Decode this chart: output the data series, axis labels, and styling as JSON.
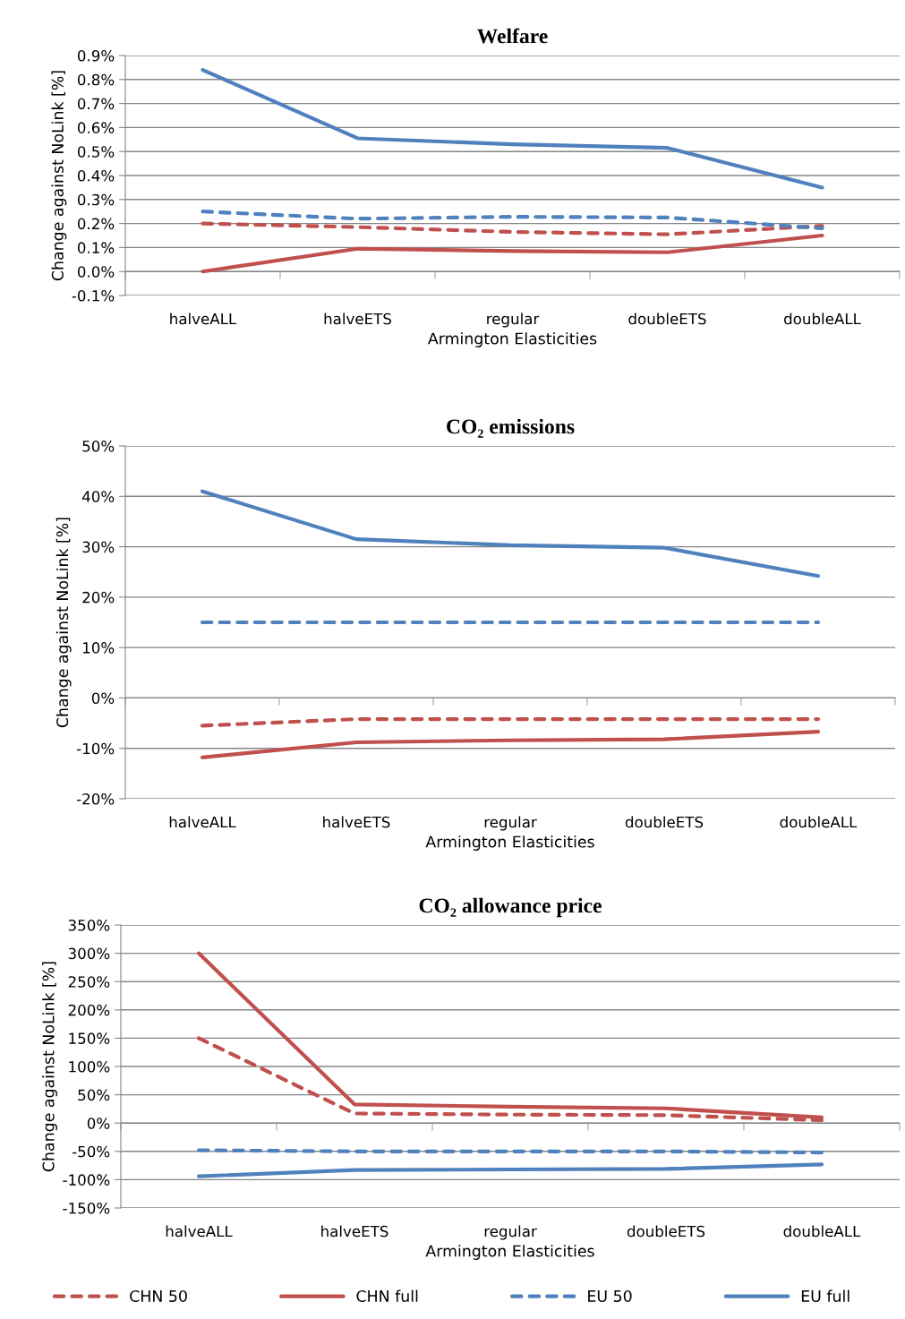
{
  "chart_data": [
    {
      "type": "line",
      "title": "Welfare",
      "xlabel": "Armington Elasticities",
      "ylabel": "Change against NoLink [%]",
      "categories": [
        "halveALL",
        "halveETS",
        "regular",
        "doubleETS",
        "doubleALL"
      ],
      "series": [
        {
          "color": "#c0504d",
          "line_style": "dashed",
          "values": [
            0.2,
            0.185,
            0.165,
            0.155,
            0.19
          ]
        },
        {
          "color": "#c0504d",
          "line_style": "solid",
          "values": [
            0.0,
            0.095,
            0.085,
            0.08,
            0.15
          ]
        },
        {
          "color": "#4f81bd",
          "line_style": "dashed",
          "values": [
            0.25,
            0.22,
            0.228,
            0.225,
            0.18
          ]
        },
        {
          "color": "#4f81bd",
          "line_style": "solid",
          "values": [
            0.84,
            0.555,
            0.53,
            0.515,
            0.35
          ]
        }
      ],
      "ylim": [
        -0.1,
        0.9
      ],
      "yticks": [
        {
          "value": -0.1,
          "label": "-0.1%"
        },
        {
          "value": 0.0,
          "label": "0.0%"
        },
        {
          "value": 0.1,
          "label": "0.1%"
        },
        {
          "value": 0.2,
          "label": "0.2%"
        },
        {
          "value": 0.3,
          "label": "0.3%"
        },
        {
          "value": 0.4,
          "label": "0.4%"
        },
        {
          "value": 0.5,
          "label": "0.5%"
        },
        {
          "value": 0.6,
          "label": "0.6%"
        },
        {
          "value": 0.7,
          "label": "0.7%"
        },
        {
          "value": 0.8,
          "label": "0.8%"
        },
        {
          "value": 0.9,
          "label": "0.9%"
        }
      ],
      "grid": "y"
    },
    {
      "type": "line",
      "title": "CO₂ emissions",
      "xlabel": "Armington Elasticities",
      "ylabel": "Change against NoLink [%]",
      "categories": [
        "halveALL",
        "halveETS",
        "regular",
        "doubleETS",
        "doubleALL"
      ],
      "series": [
        {
          "color": "#c0504d",
          "line_style": "dashed",
          "values": [
            -5.5,
            -4.2,
            -4.2,
            -4.2,
            -4.2
          ]
        },
        {
          "color": "#c0504d",
          "line_style": "solid",
          "values": [
            -11.8,
            -8.8,
            -8.4,
            -8.2,
            -6.7
          ]
        },
        {
          "color": "#4f81bd",
          "line_style": "dashed",
          "values": [
            15,
            15,
            15,
            15,
            15
          ]
        },
        {
          "color": "#4f81bd",
          "line_style": "solid",
          "values": [
            41,
            31.5,
            30.3,
            29.8,
            24.2
          ]
        }
      ],
      "ylim": [
        -20,
        50
      ],
      "yticks": [
        {
          "value": -20,
          "label": "-20%"
        },
        {
          "value": -10,
          "label": "-10%"
        },
        {
          "value": 0,
          "label": "0%"
        },
        {
          "value": 10,
          "label": "10%"
        },
        {
          "value": 20,
          "label": "20%"
        },
        {
          "value": 30,
          "label": "30%"
        },
        {
          "value": 40,
          "label": "40%"
        },
        {
          "value": 50,
          "label": "50%"
        }
      ],
      "grid": "y"
    },
    {
      "type": "line",
      "title": "CO₂ allowance price",
      "xlabel": "Armington Elasticities",
      "ylabel": "Change against NoLink [%]",
      "categories": [
        "halveALL",
        "halveETS",
        "regular",
        "doubleETS",
        "doubleALL"
      ],
      "series": [
        {
          "name": "CHN 50",
          "color": "#c0504d",
          "line_style": "dashed",
          "values": [
            150,
            17,
            15,
            14,
            5
          ]
        },
        {
          "name": "CHN full",
          "color": "#c0504d",
          "line_style": "solid",
          "values": [
            300,
            33,
            29,
            26,
            10
          ]
        },
        {
          "name": "EU 50",
          "color": "#4f81bd",
          "line_style": "dashed",
          "values": [
            -48,
            -50,
            -50,
            -50,
            -52
          ]
        },
        {
          "name": "EU full",
          "color": "#4f81bd",
          "line_style": "solid",
          "values": [
            -94,
            -83,
            -82,
            -81,
            -73
          ]
        }
      ],
      "ylim": [
        -150,
        350
      ],
      "yticks": [
        {
          "value": -150,
          "label": "-150%"
        },
        {
          "value": -100,
          "label": "-100%"
        },
        {
          "value": -50,
          "label": "-50%"
        },
        {
          "value": 0,
          "label": "0%"
        },
        {
          "value": 50,
          "label": "50%"
        },
        {
          "value": 100,
          "label": "100%"
        },
        {
          "value": 150,
          "label": "150%"
        },
        {
          "value": 200,
          "label": "200%"
        },
        {
          "value": 250,
          "label": "250%"
        },
        {
          "value": 300,
          "label": "300%"
        },
        {
          "value": 350,
          "label": "350%"
        }
      ],
      "grid": "y",
      "legend": "bottom"
    }
  ]
}
